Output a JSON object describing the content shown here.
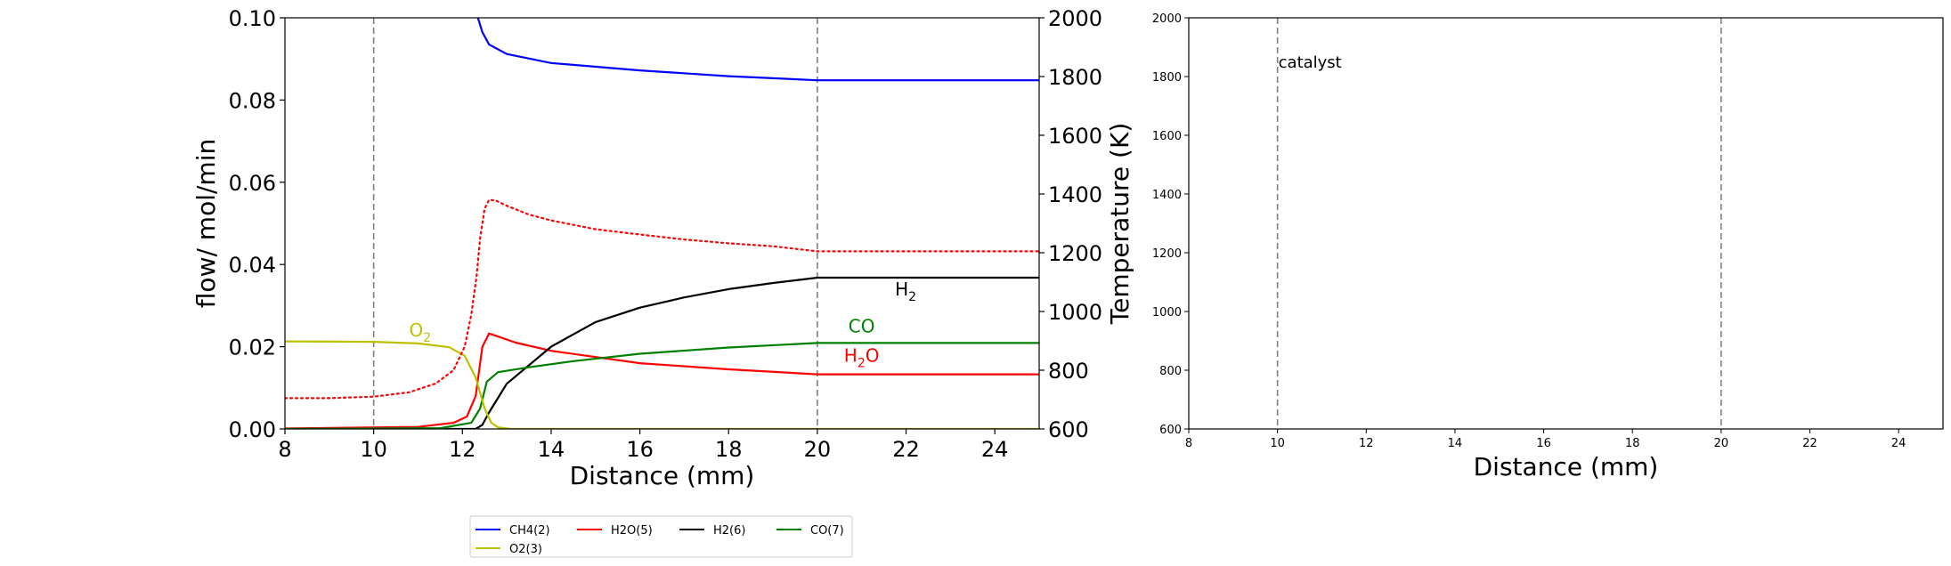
{
  "chart_data": [
    {
      "type": "line",
      "xlabel": "Distance (mm)",
      "ylabel": "flow/ mol/min",
      "y2label": "Temperature (K)",
      "xlim": [
        8,
        25
      ],
      "ylim": [
        0,
        0.1
      ],
      "y2lim": [
        600,
        2000
      ],
      "xticks": [
        "8",
        "10",
        "12",
        "14",
        "16",
        "18",
        "20",
        "22",
        "24"
      ],
      "yticks": [
        "0.00",
        "0.02",
        "0.04",
        "0.06",
        "0.08",
        "0.10"
      ],
      "y2ticks": [
        "600",
        "800",
        "1000",
        "1200",
        "1400",
        "1600",
        "1800",
        "2000"
      ],
      "vlines": [
        10,
        20
      ],
      "series": [
        {
          "name": "CH4(2)",
          "color": "#0000ff",
          "x": [
            12.35,
            12.45,
            12.6,
            13,
            14,
            16,
            18,
            20,
            25
          ],
          "values": [
            0.1,
            0.0965,
            0.0935,
            0.0912,
            0.089,
            0.0872,
            0.0858,
            0.0848,
            0.0848
          ]
        },
        {
          "name": "H2O(5)",
          "color": "#ff0000",
          "x": [
            8,
            11,
            11.8,
            12.1,
            12.3,
            12.45,
            12.6,
            12.8,
            13.2,
            14,
            16,
            18,
            20,
            25
          ],
          "values": [
            0.0001,
            0.0005,
            0.0015,
            0.003,
            0.008,
            0.02,
            0.0232,
            0.0225,
            0.021,
            0.019,
            0.016,
            0.0145,
            0.0133,
            0.0133
          ]
        },
        {
          "name": "H2(6)",
          "color": "#000000",
          "x": [
            8,
            12.3,
            12.45,
            12.6,
            13,
            14,
            15,
            16,
            17,
            18,
            19,
            20,
            25
          ],
          "values": [
            0,
            0,
            0.001,
            0.004,
            0.011,
            0.02,
            0.026,
            0.0295,
            0.032,
            0.034,
            0.0355,
            0.0368,
            0.0368
          ]
        },
        {
          "name": "CO(7)",
          "color": "#008000",
          "x": [
            8,
            11.5,
            12.2,
            12.4,
            12.55,
            12.8,
            13.5,
            14.5,
            16,
            18,
            20,
            25
          ],
          "values": [
            0,
            0.0002,
            0.0015,
            0.005,
            0.0115,
            0.0138,
            0.015,
            0.0165,
            0.0183,
            0.0198,
            0.0209,
            0.0209
          ]
        },
        {
          "name": "O2(3)",
          "color": "#bfbf00",
          "x": [
            8,
            10,
            11,
            11.7,
            12.05,
            12.3,
            12.5,
            12.65,
            12.8,
            13.1,
            25
          ],
          "values": [
            0.0213,
            0.0212,
            0.0208,
            0.0199,
            0.0178,
            0.0125,
            0.005,
            0.0015,
            0.0004,
            0,
            0
          ]
        }
      ],
      "temperature_series": {
        "color": "#ff0000",
        "style": "dotted",
        "x": [
          8,
          9,
          10,
          10.8,
          11.4,
          11.8,
          12.05,
          12.2,
          12.32,
          12.4,
          12.5,
          12.6,
          12.75,
          13,
          13.5,
          14,
          15,
          16,
          17,
          18,
          19,
          20,
          25
        ],
        "values": [
          705,
          705,
          710,
          725,
          755,
          800,
          880,
          990,
          1120,
          1250,
          1350,
          1380,
          1378,
          1360,
          1330,
          1310,
          1280,
          1262,
          1245,
          1232,
          1222,
          1205,
          1205
        ]
      },
      "annotations": [
        {
          "label": "H",
          "sub": "2",
          "x": 21.75,
          "y": 0.0325,
          "color": "#000000"
        },
        {
          "label": "CO",
          "sub": "",
          "x": 20.7,
          "y": 0.0235,
          "color": "#008000"
        },
        {
          "label": "H",
          "sub": "2",
          "tail": "O",
          "x": 20.6,
          "y": 0.0163,
          "color": "#ff0000"
        },
        {
          "label": "O",
          "sub": "2",
          "x": 10.8,
          "y": 0.0225,
          "color": "#bfbf00"
        }
      ],
      "legend": {
        "placement": "below",
        "entries": [
          {
            "label": "CH4(2)",
            "color": "#0000ff"
          },
          {
            "label": "H2O(5)",
            "color": "#ff0000"
          },
          {
            "label": "H2(6)",
            "color": "#000000"
          },
          {
            "label": "CO(7)",
            "color": "#008000"
          },
          {
            "label": "O2(3)",
            "color": "#bfbf00"
          }
        ]
      }
    },
    {
      "type": "line",
      "xlabel": "Distance (mm)",
      "xlim": [
        8,
        25
      ],
      "ylim": [
        600,
        2000
      ],
      "xticks": [
        "8",
        "10",
        "12",
        "14",
        "16",
        "18",
        "20",
        "22",
        "24"
      ],
      "yticks": [
        "600",
        "800",
        "1000",
        "1200",
        "1400",
        "1600",
        "1800",
        "2000"
      ],
      "vlines": [
        10,
        20
      ],
      "annotation": {
        "label": "catalyst",
        "x": 10,
        "y": 1830
      },
      "series": []
    }
  ]
}
